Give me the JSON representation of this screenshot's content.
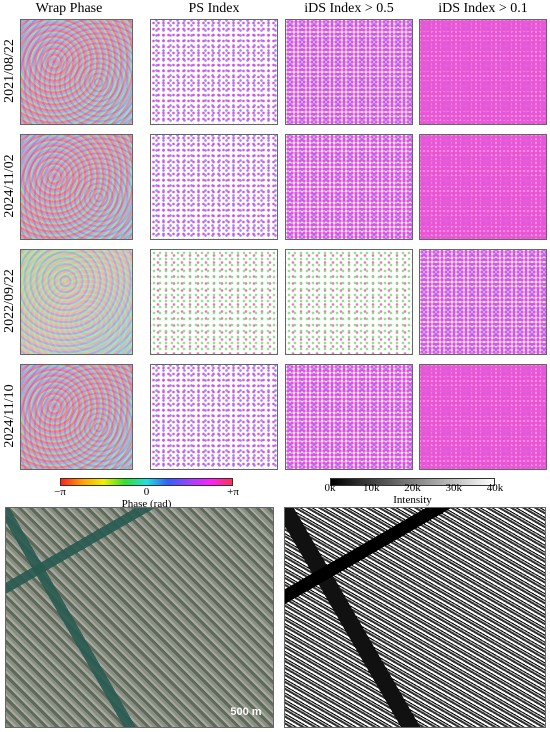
{
  "columns": [
    "Wrap Phase",
    "PS Index",
    "iDS Index > 0.5",
    "iDS Index > 0.1"
  ],
  "rows": [
    "2021/08/22",
    "2024/11/02",
    "2022/09/22",
    "2024/11/10"
  ],
  "phase_colorbar": {
    "ticks": [
      "−π",
      "0",
      "+π"
    ],
    "label": "Phase (rad)"
  },
  "intensity_colorbar": {
    "ticks": [
      "0k",
      "10k",
      "20k",
      "30k",
      "40k"
    ],
    "label": "Intensity"
  },
  "scale_bar": "500 m"
}
